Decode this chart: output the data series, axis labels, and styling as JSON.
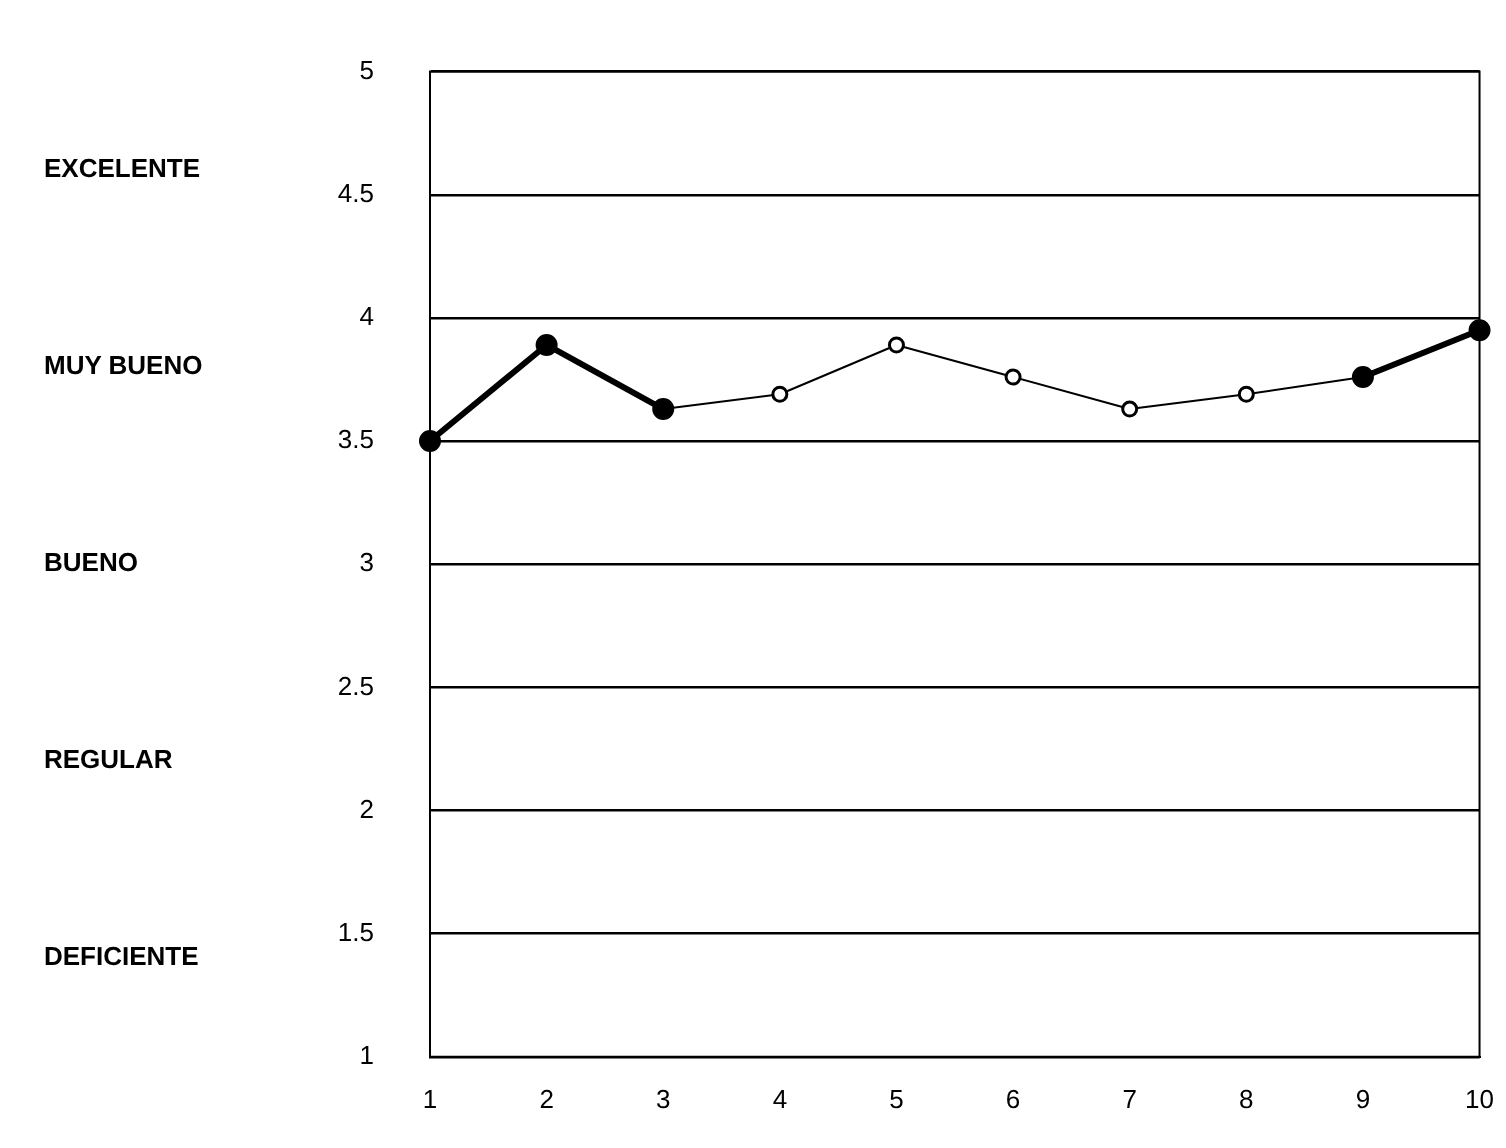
{
  "chart_data": {
    "type": "line",
    "categories": [
      "1",
      "2",
      "3",
      "4",
      "5",
      "6",
      "7",
      "8",
      "9",
      "10"
    ],
    "series": [
      {
        "color": "#000000",
        "values": [
          3.5,
          3.89,
          3.63,
          null,
          null,
          null,
          null,
          null,
          3.76,
          3.95
        ],
        "marker": "circle"
      },
      {
        "color": "#000000",
        "values": [
          null,
          null,
          3.63,
          3.69,
          3.89,
          3.76,
          3.63,
          3.69,
          3.76,
          null
        ],
        "marker": "circle"
      }
    ],
    "ylim": [
      1,
      5
    ],
    "yticks": [
      1,
      1.5,
      2,
      2.5,
      3,
      3.5,
      4,
      4.5,
      5
    ],
    "grid": "y",
    "legend": false,
    "annotations": [
      "EXCELENTE",
      "MUY BUENO",
      "BUENO",
      "REGULAR",
      "DEFICIENTE"
    ]
  }
}
